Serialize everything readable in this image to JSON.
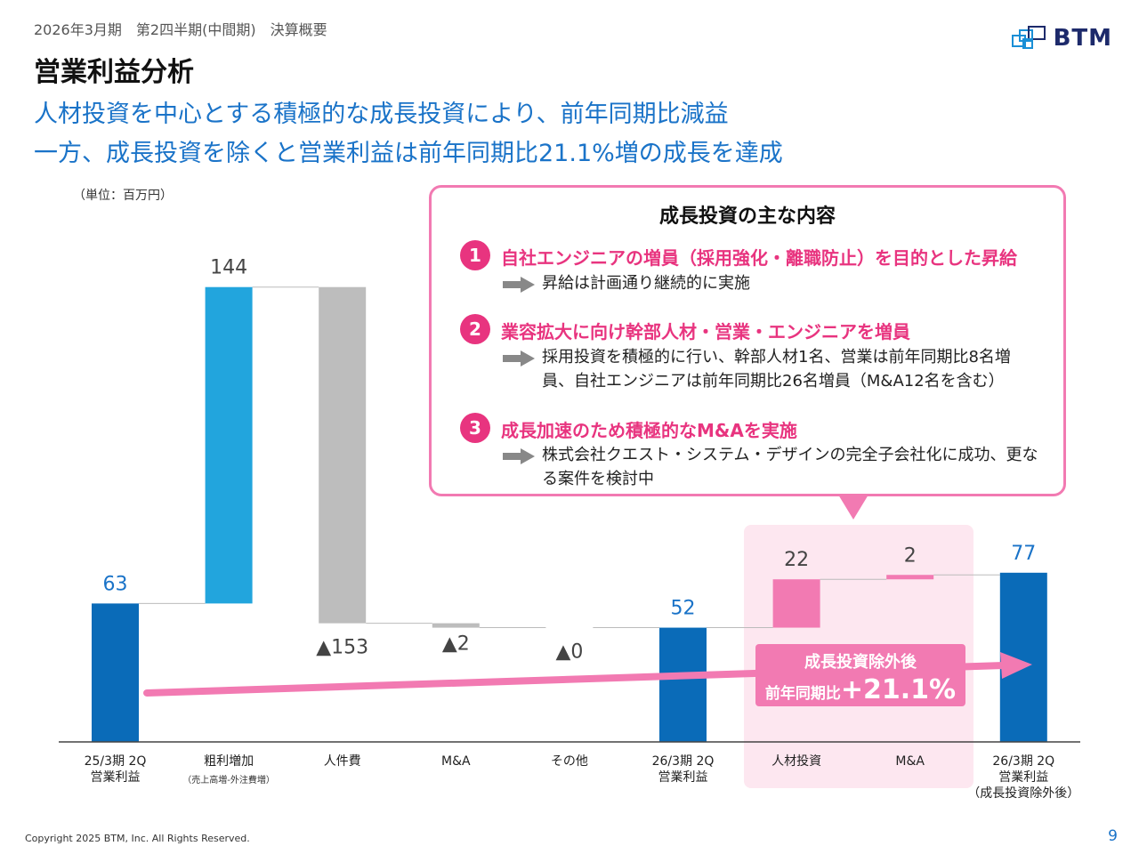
{
  "header": {
    "period_label": "2026年3月期　第2四半期(中間期)　決算概要",
    "logo_text": "BTM",
    "title": "営業利益分析",
    "headline_1": "人材投資を中心とする積極的な成長投資により、前年同期比減益",
    "headline_2": "一方、成長投資を除くと営業利益は前年同期比21.1%増の成長を達成",
    "unit": "（単位：百万円）"
  },
  "callout": {
    "title": "成長投資の主な内容",
    "items": [
      {
        "num": "1",
        "title": "自社エンジニアの増員（採用強化・離職防止）を目的とした昇給",
        "desc_1": "昇給は計画通り継続的に実施",
        "desc_2": ""
      },
      {
        "num": "2",
        "title": "業容拡大に向け幹部人材・営業・エンジニアを増員",
        "desc_1": "採用投資を積極的に行い、幹部人材1名、営業は前年同期比8名増",
        "desc_2": "員、自社エンジニアは前年同期比26名増員（M&A12名を含む）"
      },
      {
        "num": "3",
        "title": "成長加速のため積極的なM&Aを実施",
        "desc_1": "株式会社クエスト・システム・デザインの完全子会社化に成功、更な",
        "desc_2": "る案件を検討中"
      }
    ]
  },
  "growth_box": {
    "line_1": "成長投資除外後",
    "line_2_prefix": "前年同期比",
    "value": "+21.1%"
  },
  "chart_data": {
    "type": "waterfall",
    "title": "営業利益分析",
    "unit": "百万円",
    "ylim": [
      0,
      220
    ],
    "colors": {
      "total": "#0a6bb8",
      "increase": "#22a5dd",
      "decrease": "#bdbdbd",
      "invest": "#f27ab2",
      "total_label": "#1a73c8"
    },
    "bars": [
      {
        "category": "25/3期 2Q",
        "sub": "営業利益",
        "note": "",
        "kind": "total",
        "start": 0,
        "end": 63,
        "label": "63"
      },
      {
        "category": "粗利増加",
        "sub": "",
        "note": "（売上高増-外注費増）",
        "kind": "increase",
        "start": 63,
        "end": 207,
        "label": "144"
      },
      {
        "category": "人件費",
        "sub": "",
        "note": "",
        "kind": "decrease",
        "start": 207,
        "end": 54,
        "label": "▲153"
      },
      {
        "category": "M&A",
        "sub": "",
        "note": "",
        "kind": "decrease",
        "start": 54,
        "end": 52,
        "label": "▲2"
      },
      {
        "category": "その他",
        "sub": "",
        "note": "",
        "kind": "decrease",
        "start": 52,
        "end": 52,
        "label": "▲0"
      },
      {
        "category": "26/3期 2Q",
        "sub": "営業利益",
        "note": "",
        "kind": "total",
        "start": 0,
        "end": 52,
        "label": "52"
      },
      {
        "category": "人材投資",
        "sub": "",
        "note": "",
        "kind": "invest",
        "start": 52,
        "end": 74,
        "label": "22"
      },
      {
        "category": "M&A",
        "sub": "",
        "note": "",
        "kind": "invest",
        "start": 74,
        "end": 76,
        "label": "2"
      },
      {
        "category": "26/3期 2Q",
        "sub": "営業利益",
        "note": "（成長投資除外後）",
        "kind": "total",
        "start": 0,
        "end": 77,
        "label": "77"
      }
    ]
  },
  "footer": {
    "copyright": "Copyright 2025 BTM, Inc. All Rights Reserved.",
    "page_number": "9"
  }
}
